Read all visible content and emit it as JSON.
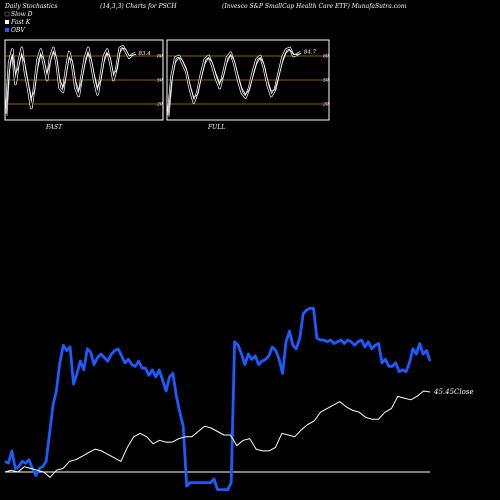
{
  "header": {
    "left": "Daily Stochastics",
    "center": "(14,3,3) Charts for PSCH",
    "right": "(Invesco  S&P SmallCap Health Care  ETF) MunafaSutra.com"
  },
  "legend": [
    {
      "label": "Slow  D",
      "color": "#000000"
    },
    {
      "label": "Fast K",
      "color": "#ffffff"
    },
    {
      "label": "OBV",
      "color": "#1e5bff"
    }
  ],
  "colors": {
    "background": "#000000",
    "panel_bg": "#ffffff",
    "level_line": "#b8860b",
    "line_white": "#ffffff",
    "obv": "#1e5bff",
    "close": "#ffffff"
  },
  "chart_data": [
    {
      "type": "line",
      "panel": "fast",
      "label": "FAST",
      "ylim": [
        0,
        100
      ],
      "levels": [
        20,
        50,
        80
      ],
      "level_labels": [
        "20",
        "50",
        "80"
      ],
      "last_value_label": "83.4",
      "series": [
        {
          "name": "Fast K",
          "values": [
            5,
            72,
            88,
            45,
            72,
            90,
            60,
            40,
            15,
            42,
            75,
            88,
            70,
            50,
            78,
            90,
            72,
            40,
            35,
            62,
            85,
            68,
            40,
            30,
            55,
            78,
            90,
            70,
            48,
            32,
            55,
            80,
            88,
            72,
            50,
            65,
            90,
            92,
            85,
            78,
            82,
            83.4
          ]
        },
        {
          "name": "Slow  D",
          "values": [
            8,
            60,
            82,
            58,
            66,
            82,
            70,
            48,
            28,
            36,
            64,
            82,
            76,
            58,
            72,
            86,
            78,
            52,
            40,
            54,
            78,
            74,
            50,
            36,
            50,
            70,
            84,
            76,
            56,
            40,
            50,
            72,
            84,
            78,
            58,
            62,
            84,
            90,
            88,
            80,
            81,
            82
          ]
        }
      ]
    },
    {
      "type": "line",
      "panel": "full",
      "label": "FULL",
      "ylim": [
        0,
        100
      ],
      "levels": [
        20,
        50,
        80
      ],
      "level_labels": [
        "20",
        "50",
        "80"
      ],
      "last_value_label": "84.7",
      "series": [
        {
          "name": "Full K",
          "values": [
            4,
            55,
            78,
            80,
            70,
            60,
            38,
            22,
            35,
            58,
            76,
            80,
            68,
            52,
            40,
            58,
            78,
            84,
            70,
            50,
            34,
            28,
            40,
            60,
            76,
            80,
            66,
            44,
            30,
            38,
            58,
            78,
            88,
            90,
            80,
            82,
            84.7
          ]
        },
        {
          "name": "Full D",
          "values": [
            6,
            48,
            72,
            78,
            74,
            64,
            44,
            28,
            32,
            52,
            70,
            78,
            72,
            58,
            46,
            54,
            72,
            82,
            74,
            56,
            40,
            32,
            38,
            54,
            70,
            78,
            70,
            50,
            36,
            38,
            54,
            72,
            84,
            88,
            82,
            82,
            83
          ]
        }
      ]
    },
    {
      "type": "line",
      "panel": "main",
      "last_value_label": "45.45Close",
      "series": [
        {
          "name": "OBV",
          "values": [
            6,
            5,
            12,
            2,
            3,
            6,
            5,
            7,
            2,
            -2,
            2,
            3,
            6,
            22,
            38,
            46,
            62,
            72,
            69,
            71,
            50,
            56,
            63,
            58,
            70,
            68,
            61,
            65,
            67,
            65,
            63,
            67,
            69,
            70,
            66,
            62,
            64,
            61,
            60,
            63,
            59,
            59,
            55,
            58,
            54,
            58,
            52,
            46,
            54,
            56,
            43,
            34,
            26,
            -8,
            -6,
            -6,
            -6,
            -6,
            -6,
            -6,
            -6,
            -4,
            -10,
            -10,
            -10,
            -10,
            -6,
            74,
            72,
            67,
            61,
            67,
            64,
            66,
            61,
            63,
            64,
            66,
            71,
            69,
            64,
            56,
            74,
            80,
            72,
            70,
            76,
            90,
            92,
            93,
            93,
            76,
            75,
            75,
            74,
            75,
            73,
            74,
            75,
            73,
            75,
            74,
            72,
            74,
            75,
            71,
            74,
            70,
            72,
            73,
            62,
            64,
            60,
            60,
            62,
            57,
            58,
            57,
            62,
            70,
            67,
            73,
            67,
            69,
            63
          ]
        },
        {
          "name": "Close",
          "values": [
            0,
            1,
            0,
            3,
            2,
            1,
            0,
            -3,
            1,
            2,
            6,
            7,
            9,
            11,
            13,
            12,
            10,
            8,
            6,
            14,
            20,
            22,
            20,
            16,
            18,
            17,
            17,
            19,
            20,
            20,
            23,
            26,
            25,
            23,
            21,
            21,
            15,
            18,
            19,
            13,
            12,
            12,
            14,
            22,
            21,
            20,
            24,
            27,
            29,
            34,
            36,
            38,
            40,
            37,
            35,
            34,
            31,
            30,
            30,
            34,
            36,
            43,
            42,
            41,
            43,
            46,
            45.45
          ]
        }
      ]
    }
  ]
}
